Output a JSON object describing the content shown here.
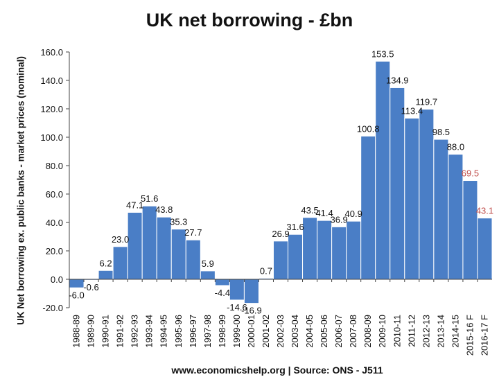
{
  "chart_data": {
    "type": "bar",
    "title": "UK net borrowing - £bn",
    "ylabel": "UK Net borrowing ex. public banks - market prices (nominal)",
    "xlabel": "",
    "footer": "www.economicshelp.org | Source: ONS - J511",
    "ylim": [
      -20,
      160
    ],
    "yticks": [
      -20,
      0,
      20,
      40,
      60,
      80,
      100,
      120,
      140,
      160
    ],
    "ytick_labels": [
      "-20.0",
      "0.0",
      "20.0",
      "40.0",
      "60.0",
      "80.0",
      "100.0",
      "120.0",
      "140.0",
      "160.0"
    ],
    "grid": false,
    "categories": [
      "1988-89",
      "1989-90",
      "1990-91",
      "1991-92",
      "1992-93",
      "1993-94",
      "1994-95",
      "1995-96",
      "1996-97",
      "1997-98",
      "1998-99",
      "1999-00",
      "2000-01",
      "2001-02",
      "2002-03",
      "2003-04",
      "2004-05",
      "2005-06",
      "2006-07",
      "2007-08",
      "2008-09",
      "2009-10",
      "2010-11",
      "2011-12",
      "2012-13",
      "2013-14",
      "2014-15",
      "2015-16 F",
      "2016-17 F"
    ],
    "values": [
      -6.0,
      -0.6,
      6.2,
      23.0,
      47.1,
      51.6,
      43.8,
      35.3,
      27.7,
      5.9,
      -4.4,
      -14.6,
      -16.9,
      0.7,
      26.9,
      31.6,
      43.5,
      41.4,
      36.9,
      40.9,
      100.8,
      153.5,
      134.9,
      113.4,
      119.7,
      98.5,
      88.0,
      69.5,
      43.1
    ],
    "value_labels": [
      "-6.0",
      "-0.6",
      "6.2",
      "23.0",
      "47.1",
      "51.6",
      "43.8",
      "35.3",
      "27.7",
      "5.9",
      "-4.4",
      "-14.6",
      "-16.9",
      "0.7",
      "26.9",
      "31.6",
      "43.5",
      "41.4",
      "36.9",
      "40.9",
      "100.8",
      "153.5",
      "134.9",
      "113.4",
      "119.7",
      "98.5",
      "88.0",
      "69.5",
      "43.1"
    ],
    "forecast": [
      false,
      false,
      false,
      false,
      false,
      false,
      false,
      false,
      false,
      false,
      false,
      false,
      false,
      false,
      false,
      false,
      false,
      false,
      false,
      false,
      false,
      false,
      false,
      false,
      false,
      false,
      false,
      true,
      true
    ],
    "colors": {
      "bar": "#4a7ec6",
      "bar_edge": "#ffffff",
      "forecast_label": "#c0504d",
      "label": "#111111",
      "axis": "#444444"
    }
  }
}
